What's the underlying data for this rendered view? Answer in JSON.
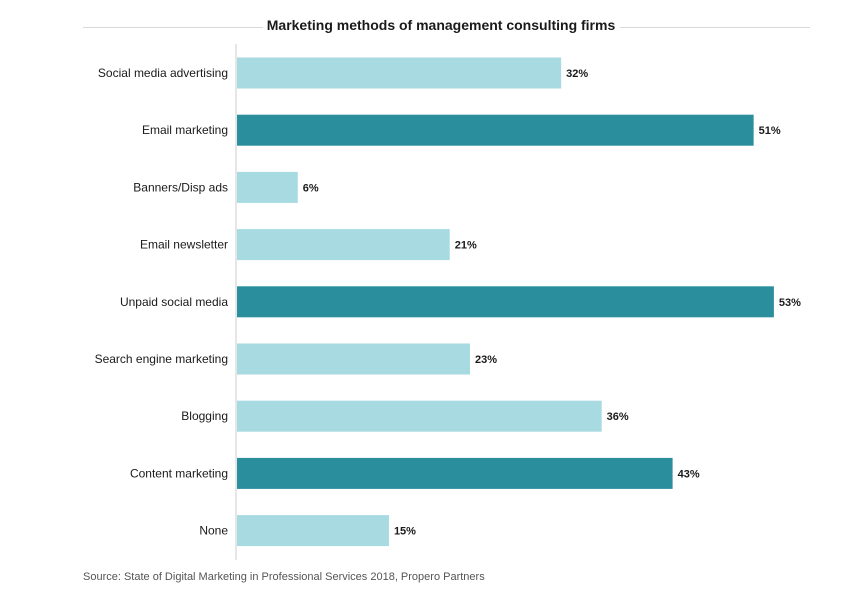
{
  "chart_data": {
    "type": "bar",
    "orientation": "horizontal",
    "title": "Marketing methods of management consulting firms",
    "source": "Source: State of Digital Marketing in Professional Services 2018, Propero Partners",
    "categories": [
      "Social media advertising",
      "Email marketing",
      "Banners/Disp ads",
      "Email newsletter",
      "Unpaid social media",
      "Search engine marketing",
      "Blogging",
      "Content marketing",
      "None"
    ],
    "values": [
      32,
      51,
      6,
      21,
      53,
      23,
      36,
      43,
      15
    ],
    "value_labels": [
      "32%",
      "51%",
      "6%",
      "21%",
      "53%",
      "23%",
      "36%",
      "43%",
      "15%"
    ],
    "highlighted": [
      false,
      true,
      false,
      false,
      true,
      false,
      false,
      true,
      false
    ],
    "xlim": [
      0,
      55
    ],
    "xlabel": "",
    "ylabel": "",
    "grid": false,
    "legend": "none",
    "colors": {
      "bar": "#a8dae1",
      "bar_highlight": "#2a8e9d",
      "axis": "#cccccc",
      "text": "#1a1a1a"
    }
  }
}
